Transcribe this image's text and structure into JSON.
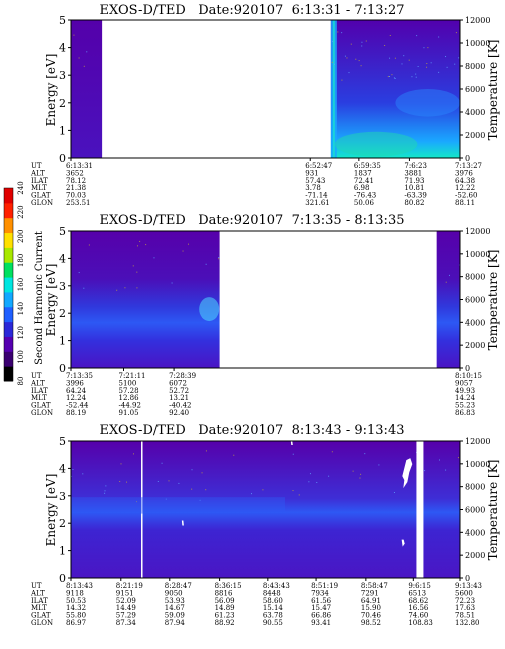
{
  "chart_data": [
    {
      "type": "heatmap",
      "title": "EXOS-D/TED   Date:920107  6:13:31 - 7:13:27",
      "ylabel": "Energy [eV]",
      "y2label": "Temperature [K]",
      "ylim": [
        0,
        5
      ],
      "y2lim": [
        0,
        12000
      ],
      "yticks": [
        "0",
        "1",
        "2",
        "3",
        "4",
        "5"
      ],
      "y2ticks": [
        "0",
        "2000",
        "4000",
        "6000",
        "8000",
        "10000",
        "12000"
      ],
      "row_labels": [
        "UT",
        "ALT",
        "ILAT",
        "MLT",
        "GLAT",
        "GLON"
      ],
      "columns": [
        {
          "frac": 0.0,
          "values": [
            "6:13:31",
            "3652",
            "78.12",
            "21.38",
            "70.03",
            "253.51"
          ]
        },
        {
          "frac": 0.615,
          "values": [
            "6:52:47",
            "931",
            "57.43",
            "3.78",
            "-71.14",
            "321.61"
          ]
        },
        {
          "frac": 0.74,
          "values": [
            "6:59:35",
            "1837",
            "72.41",
            "6.98",
            "-76.43",
            "50.06"
          ]
        },
        {
          "frac": 0.87,
          "values": [
            "7:6:23",
            "3881",
            "71.93",
            "10.81",
            "-63.39",
            "80.82"
          ]
        },
        {
          "frac": 1.0,
          "values": [
            "7:13:27",
            "3976",
            "64.38",
            "12.22",
            "-52.60",
            "88.11"
          ]
        }
      ],
      "data_segments": [
        {
          "from": 0.0,
          "to": 0.08,
          "style": "quiet"
        },
        {
          "from": 0.668,
          "to": 1.0,
          "style": "active"
        }
      ]
    },
    {
      "type": "heatmap",
      "title": "EXOS-D/TED   Date:920107  7:13:35 - 8:13:35",
      "ylabel": "Energy [eV]",
      "y2label": "Temperature [K]",
      "ylim": [
        0,
        5
      ],
      "y2lim": [
        0,
        12000
      ],
      "yticks": [
        "0",
        "1",
        "2",
        "3",
        "4",
        "5"
      ],
      "y2ticks": [
        "0",
        "2000",
        "4000",
        "6000",
        "8000",
        "10000",
        "12000"
      ],
      "row_labels": [
        "UT",
        "ALT",
        "ILAT",
        "MLT",
        "GLAT",
        "GLON"
      ],
      "columns": [
        {
          "frac": 0.0,
          "values": [
            "7:13:35",
            "3996",
            "64.24",
            "12.24",
            "-52.44",
            "88.19"
          ]
        },
        {
          "frac": 0.135,
          "values": [
            "7:21:11",
            "5100",
            "57.28",
            "12.86",
            "-44.92",
            "91.05"
          ]
        },
        {
          "frac": 0.265,
          "values": [
            "7:28:39",
            "6072",
            "52.72",
            "13.21",
            "-40.42",
            "92.40"
          ]
        },
        {
          "frac": 1.0,
          "values": [
            "8:10:15",
            "9057",
            "49.93",
            "14.24",
            "55.23",
            "86.83"
          ]
        }
      ],
      "data_segments": [
        {
          "from": 0.0,
          "to": 0.382,
          "style": "band"
        },
        {
          "from": 0.94,
          "to": 1.0,
          "style": "band"
        }
      ]
    },
    {
      "type": "heatmap",
      "title": "EXOS-D/TED   Date:920107  8:13:43 - 9:13:43",
      "ylabel": "Energy [eV]",
      "y2label": "Temperature [K]",
      "ylim": [
        0,
        5
      ],
      "y2lim": [
        0,
        12000
      ],
      "yticks": [
        "0",
        "1",
        "2",
        "3",
        "4",
        "5"
      ],
      "y2ticks": [
        "0",
        "2000",
        "4000",
        "6000",
        "8000",
        "10000",
        "12000"
      ],
      "row_labels": [
        "UT",
        "ALT",
        "ILAT",
        "MLT",
        "GLAT",
        "GLON"
      ],
      "columns": [
        {
          "frac": 0.0,
          "values": [
            "8:13:43",
            "9118",
            "50.53",
            "14.32",
            "55.80",
            "86.97"
          ]
        },
        {
          "frac": 0.128,
          "values": [
            "8:21:19",
            "9151",
            "52.09",
            "14.49",
            "57.29",
            "87.34"
          ]
        },
        {
          "frac": 0.254,
          "values": [
            "8:28:47",
            "9050",
            "53.93",
            "14.67",
            "59.09",
            "87.94"
          ]
        },
        {
          "frac": 0.382,
          "values": [
            "8:36:15",
            "8816",
            "56.09",
            "14.89",
            "61.23",
            "88.92"
          ]
        },
        {
          "frac": 0.506,
          "values": [
            "8:43:43",
            "8448",
            "58.60",
            "15.14",
            "63.78",
            "90.55"
          ]
        },
        {
          "frac": 0.63,
          "values": [
            "8:51:19",
            "7934",
            "61.56",
            "15.47",
            "66.86",
            "93.41"
          ]
        },
        {
          "frac": 0.758,
          "values": [
            "8:58:47",
            "7291",
            "64.91",
            "15.90",
            "70.46",
            "98.52"
          ]
        },
        {
          "frac": 0.88,
          "values": [
            "9:6:15",
            "6513",
            "68.62",
            "16.56",
            "74.60",
            "108.83"
          ]
        },
        {
          "frac": 1.0,
          "values": [
            "9:13:43",
            "5600",
            "72.23",
            "17.63",
            "78.51",
            "132.80"
          ]
        }
      ],
      "data_segments": [
        {
          "from": 0.0,
          "to": 1.0,
          "style": "full"
        }
      ]
    }
  ],
  "colorbar": {
    "label": "Second Harmonic Current",
    "ticks": [
      "80",
      "100",
      "120",
      "140",
      "160",
      "180",
      "200",
      "220",
      "240"
    ],
    "range": [
      80,
      240
    ],
    "colors": [
      "#000000",
      "#3a0070",
      "#5500b0",
      "#2b28d8",
      "#1f5fff",
      "#12a8ff",
      "#00e6e0",
      "#00e060",
      "#a8e800",
      "#ffe000",
      "#ff9000",
      "#ff2000",
      "#e00000"
    ]
  }
}
